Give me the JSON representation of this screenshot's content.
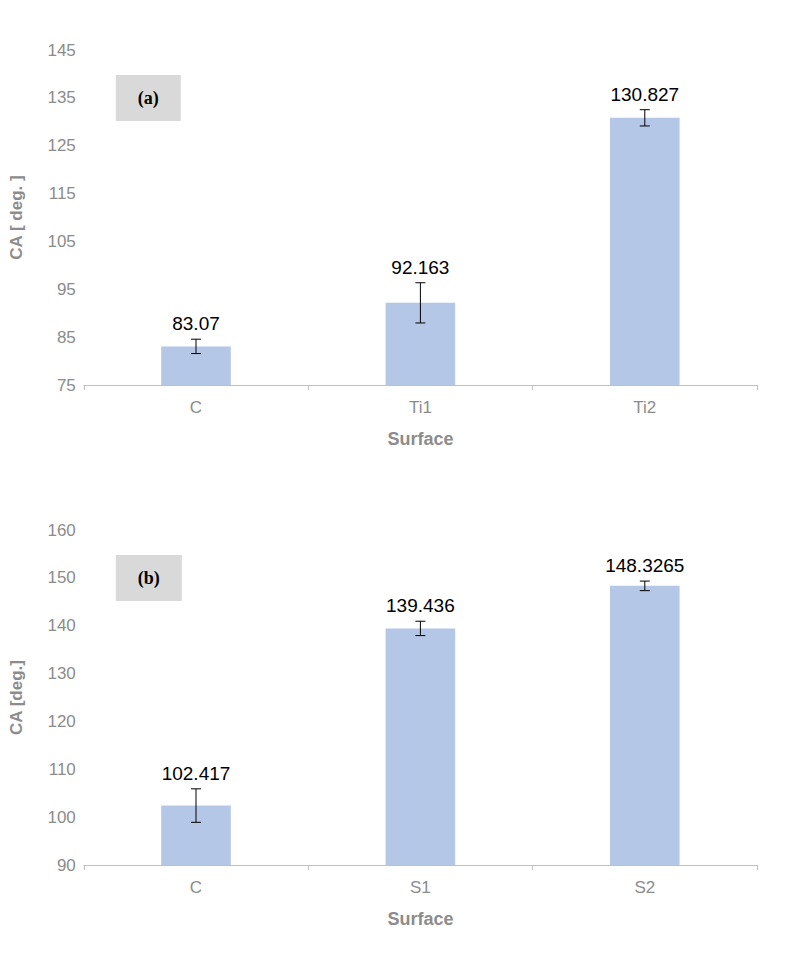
{
  "chart_data": [
    {
      "type": "bar",
      "title": "(a)",
      "x_label": "Surface",
      "y_label": "CA [ deg. ]",
      "categories": [
        "C",
        "Ti1",
        "Ti2"
      ],
      "values": [
        83.07,
        92.163,
        130.827
      ],
      "errors": [
        1.5,
        4.2,
        1.7
      ],
      "color": "#b4c7e7",
      "ylim": [
        75,
        145
      ],
      "yticks": [
        75,
        85,
        95,
        105,
        115,
        125,
        135,
        145
      ],
      "grid": false,
      "data_labels": true
    },
    {
      "type": "bar",
      "title": "(b)",
      "x_label": "Surface",
      "y_label": "CA [deg.]",
      "categories": [
        "C",
        "S1",
        "S2"
      ],
      "values": [
        102.417,
        139.436,
        148.3265
      ],
      "errors": [
        3.5,
        1.5,
        1.0
      ],
      "color": "#b4c7e7",
      "ylim": [
        90,
        160
      ],
      "yticks": [
        90,
        100,
        110,
        120,
        130,
        140,
        150,
        160
      ],
      "grid": false,
      "data_labels": true
    }
  ]
}
